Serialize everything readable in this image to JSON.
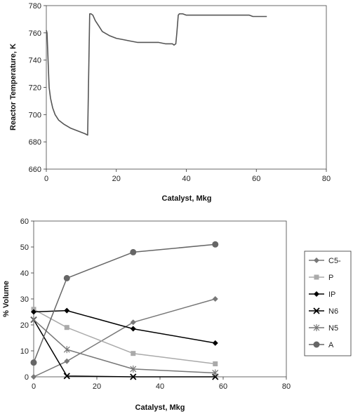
{
  "chart_data": [
    {
      "type": "line",
      "xlabel": "Catalyst, Mkg",
      "ylabel": "Reactor Temperature, K",
      "xlim": [
        0,
        80
      ],
      "ylim": [
        660,
        780
      ],
      "xticks": [
        "0",
        "20",
        "40",
        "60",
        "80"
      ],
      "yticks": [
        "660",
        "680",
        "700",
        "720",
        "740",
        "760",
        "780"
      ],
      "grid": false,
      "legend": "none",
      "series": [
        {
          "color": "#555555",
          "x": [
            0,
            0.2,
            0.5,
            0.8,
            1.2,
            1.8,
            2.5,
            3.5,
            5,
            7,
            9,
            11,
            11.8,
            12.4,
            12.8,
            13.3,
            14,
            15,
            16,
            18,
            20,
            22,
            24,
            26,
            28,
            30,
            32,
            34,
            35,
            36,
            36.5,
            37,
            37.3,
            37.7,
            38,
            39,
            40,
            45,
            50,
            55,
            58,
            59,
            63
          ],
          "y": [
            762,
            760,
            740,
            720,
            712,
            705,
            700,
            696,
            693,
            690,
            688,
            686,
            685,
            774,
            774,
            773,
            769,
            765,
            761,
            758,
            756,
            755,
            754,
            753,
            753,
            753,
            753,
            752,
            752,
            752,
            751,
            752,
            760,
            773,
            774,
            774,
            773,
            773,
            773,
            773,
            773,
            772,
            772
          ]
        }
      ]
    },
    {
      "type": "line",
      "xlabel": "Catalyst, Mkg",
      "ylabel": "% Volume",
      "xlim": [
        0,
        80
      ],
      "ylim": [
        0,
        60
      ],
      "xticks": [
        "0",
        "20",
        "40",
        "60",
        "80"
      ],
      "yticks": [
        "0",
        "10",
        "20",
        "30",
        "40",
        "50",
        "60"
      ],
      "grid": false,
      "legend": "right",
      "series": [
        {
          "name": "C5-",
          "marker": "diamond",
          "color": "#777777",
          "x": [
            0,
            10.5,
            31.5,
            57.5
          ],
          "y": [
            0,
            6,
            21,
            30
          ]
        },
        {
          "name": "P",
          "marker": "square",
          "color": "#aaaaaa",
          "x": [
            0,
            10.5,
            31.5,
            57.5
          ],
          "y": [
            26,
            19,
            9,
            5
          ]
        },
        {
          "name": "IP",
          "marker": "diamond",
          "color": "#000000",
          "x": [
            0,
            10.5,
            31.5,
            57.5
          ],
          "y": [
            25,
            25.5,
            18.5,
            13
          ]
        },
        {
          "name": "N6",
          "marker": "x",
          "color": "#000000",
          "x": [
            0,
            10.5,
            31.5,
            57.5
          ],
          "y": [
            22,
            0.3,
            0,
            0
          ]
        },
        {
          "name": "N5",
          "marker": "star",
          "color": "#777777",
          "x": [
            0,
            10.5,
            31.5,
            57.5
          ],
          "y": [
            22,
            10.5,
            3,
            1.5
          ]
        },
        {
          "name": "A",
          "marker": "circle",
          "color": "#666666",
          "x": [
            0,
            10.5,
            31.5,
            57.5
          ],
          "y": [
            5.5,
            38,
            48,
            51
          ]
        }
      ]
    }
  ]
}
